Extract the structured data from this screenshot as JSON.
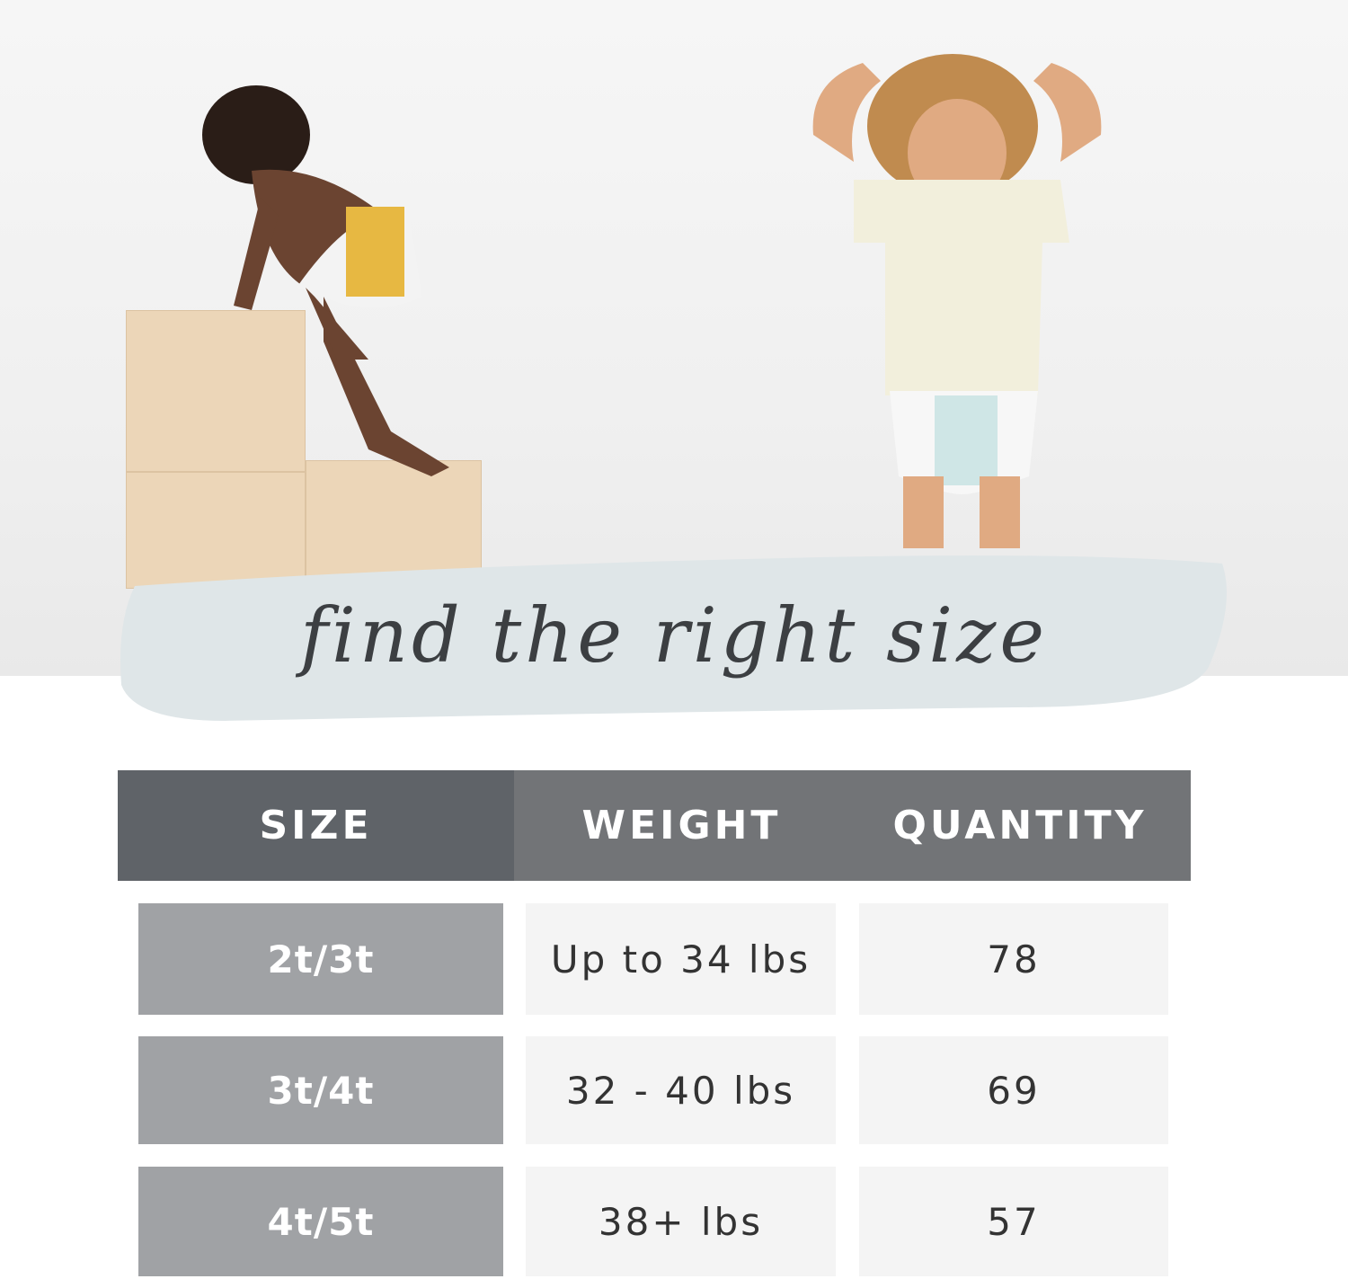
{
  "tagline": "find the right size",
  "colors": {
    "header_size_bg": "#5f6368",
    "header_bg": "#727477",
    "size_cell_bg": "#a0a2a5",
    "value_cell_bg": "#f4f4f4",
    "brush": "#dfe6e8"
  },
  "table": {
    "headers": [
      "SIZE",
      "WEIGHT",
      "QUANTITY"
    ],
    "rows": [
      {
        "size": "2t/3t",
        "weight": "Up to 34 lbs",
        "quantity": "78"
      },
      {
        "size": "3t/4t",
        "weight": "32 - 40 lbs",
        "quantity": "69"
      },
      {
        "size": "4t/5t",
        "weight": "38+ lbs",
        "quantity": "57"
      }
    ]
  }
}
